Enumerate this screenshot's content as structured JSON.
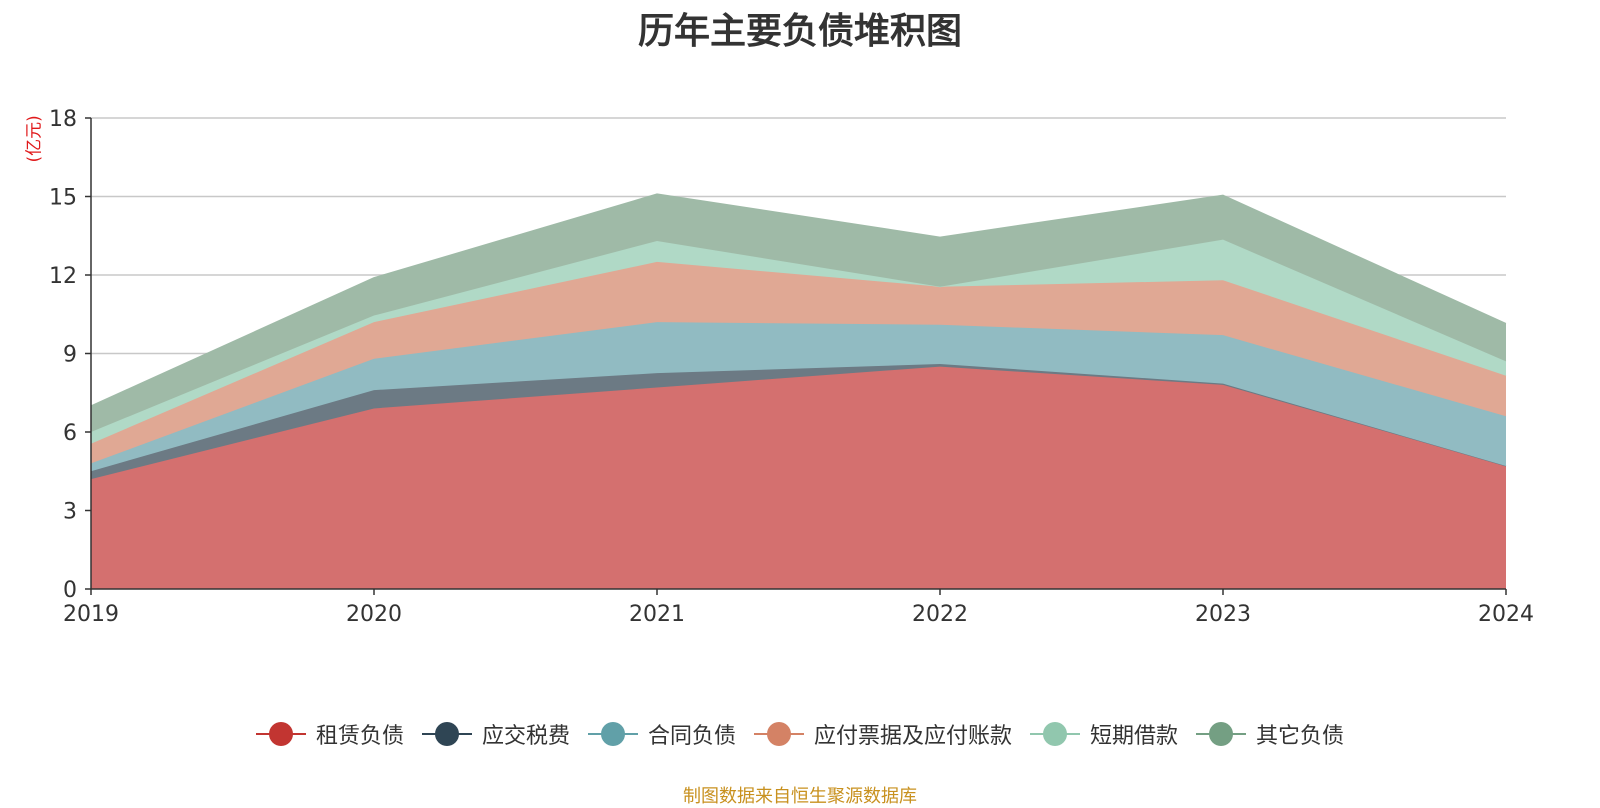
{
  "chart_data": {
    "type": "area",
    "stacked": true,
    "title": "历年主要负债堆积图",
    "unit_label": "(亿元)",
    "source": "制图数据来自恒生聚源数据库",
    "x": [
      "2019",
      "2020",
      "2021",
      "2022",
      "2023",
      "2024"
    ],
    "ylim": [
      0,
      18
    ],
    "yticks": [
      "0",
      "3",
      "6",
      "9",
      "12",
      "15",
      "18"
    ],
    "grid": true,
    "legend_position": "bottom",
    "series": [
      {
        "name": "租赁负债",
        "color": "#c23531",
        "area_color": "#d4706f",
        "values": [
          4.2,
          6.9,
          7.7,
          8.5,
          7.8,
          4.7
        ]
      },
      {
        "name": "应交税费",
        "color": "#2f4554",
        "area_color": "#6c7a84",
        "values": [
          0.3,
          0.7,
          0.55,
          0.1,
          0.05,
          0.0
        ]
      },
      {
        "name": "合同负债",
        "color": "#61a0a8",
        "area_color": "#91bbc2",
        "values": [
          0.3,
          1.2,
          1.95,
          1.5,
          1.85,
          1.9
        ]
      },
      {
        "name": "应付票据及应付账款",
        "color": "#d48265",
        "area_color": "#e0a894",
        "values": [
          0.75,
          1.4,
          2.3,
          1.45,
          2.1,
          1.55
        ]
      },
      {
        "name": "短期借款",
        "color": "#91c7ae",
        "area_color": "#b0d9c6",
        "values": [
          0.45,
          0.25,
          0.8,
          0.0,
          1.55,
          0.55
        ]
      },
      {
        "name": "其它负债",
        "color": "#749f83",
        "area_color": "#9fbaa7",
        "values": [
          1.0,
          1.45,
          1.8,
          1.9,
          1.7,
          1.45
        ]
      }
    ]
  }
}
